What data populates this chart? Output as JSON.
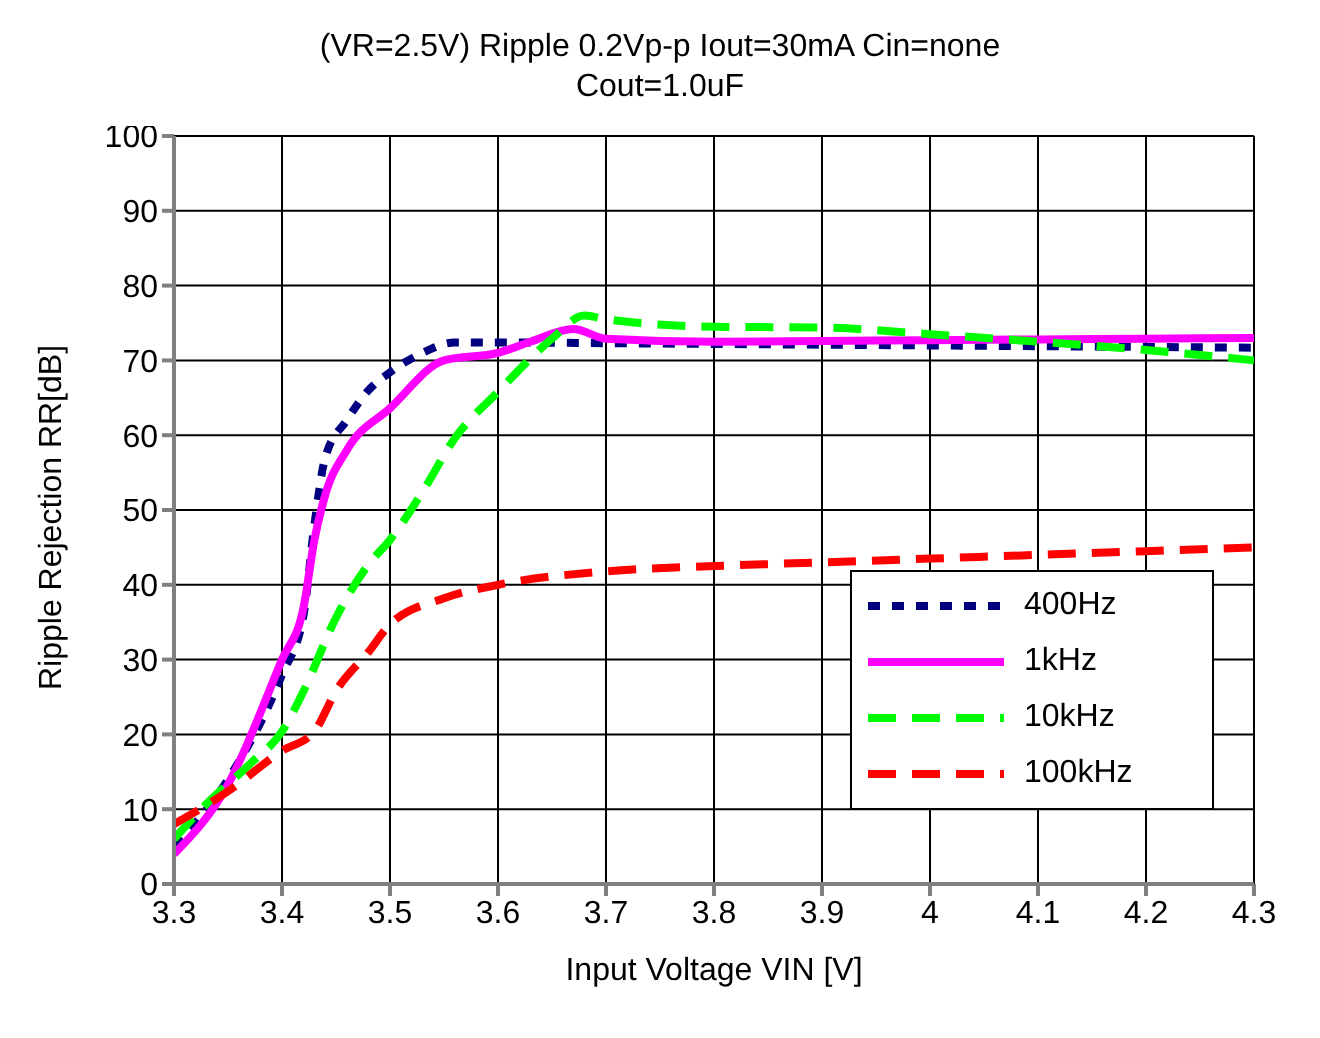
{
  "chart_data": {
    "type": "line",
    "title": "(VR=2.5V) Ripple 0.2Vp-p Iout=30mA Cin=none",
    "subtitle": "Cout=1.0uF",
    "xlabel": "Input Voltage VIN [V]",
    "ylabel": "Ripple Rejection RR[dB]",
    "xlim": [
      3.3,
      4.3
    ],
    "xticks": [
      3.3,
      3.4,
      3.5,
      3.6,
      3.7,
      3.8,
      3.9,
      {
        "value": 4,
        "label": "4"
      },
      4.1,
      4.2,
      4.3
    ],
    "ylim": [
      0,
      100
    ],
    "yticks": [
      0,
      10,
      20,
      30,
      40,
      50,
      60,
      70,
      80,
      90,
      100
    ],
    "grid": true,
    "legend": "bottom right",
    "marker": "none",
    "series": [
      {
        "name": "400Hz",
        "color": "#000080",
        "line_style": "dotted",
        "x": [
          3.3,
          3.35,
          3.4,
          3.42,
          3.43,
          3.44,
          3.46,
          3.48,
          3.5,
          3.53,
          3.56,
          3.6,
          3.7,
          3.8,
          3.9,
          4.0,
          4.1,
          4.2,
          4.3
        ],
        "values": [
          5,
          14,
          28,
          36,
          48,
          57,
          62,
          66,
          68.4,
          71,
          72.4,
          72.4,
          72.3,
          72.2,
          72.1,
          72,
          71.9,
          71.8,
          71.7
        ]
      },
      {
        "name": "1kHz",
        "color": "#ff00ff",
        "line_style": "solid",
        "x": [
          3.3,
          3.35,
          3.4,
          3.42,
          3.43,
          3.44,
          3.46,
          3.5,
          3.55,
          3.6,
          3.63,
          3.67,
          3.7,
          3.8,
          3.9,
          4.0,
          4.1,
          4.2,
          4.3
        ],
        "values": [
          4,
          13.3,
          30,
          37,
          46,
          52,
          58,
          63.6,
          70,
          71,
          72.5,
          74.2,
          72.9,
          72.5,
          72.6,
          72.7,
          72.8,
          72.9,
          73
        ]
      },
      {
        "name": "10kHz",
        "color": "#00ff00",
        "line_style": "dashed",
        "x": [
          3.3,
          3.33,
          3.37,
          3.4,
          3.42,
          3.45,
          3.48,
          3.5,
          3.53,
          3.56,
          3.6,
          3.65,
          3.68,
          3.7,
          3.8,
          3.9,
          4.0,
          4.1,
          4.2,
          4.3
        ],
        "values": [
          6,
          10.7,
          16,
          20.4,
          25.8,
          35.6,
          42.7,
          46,
          52.4,
          59.6,
          65.8,
          72.9,
          76,
          75.5,
          74.5,
          74.4,
          73.5,
          72.5,
          71.4,
          70
        ]
      },
      {
        "name": "100kHz",
        "color": "#ff0000",
        "line_style": "dashed",
        "x": [
          3.3,
          3.35,
          3.4,
          3.43,
          3.45,
          3.48,
          3.5,
          3.55,
          3.6,
          3.7,
          3.8,
          3.9,
          4.0,
          4.1,
          4.2,
          4.3
        ],
        "values": [
          8,
          12.4,
          17.8,
          20.4,
          25.8,
          31,
          34.7,
          38.2,
          40,
          41.8,
          42.5,
          43,
          43.5,
          44,
          44.5,
          45
        ]
      }
    ]
  }
}
